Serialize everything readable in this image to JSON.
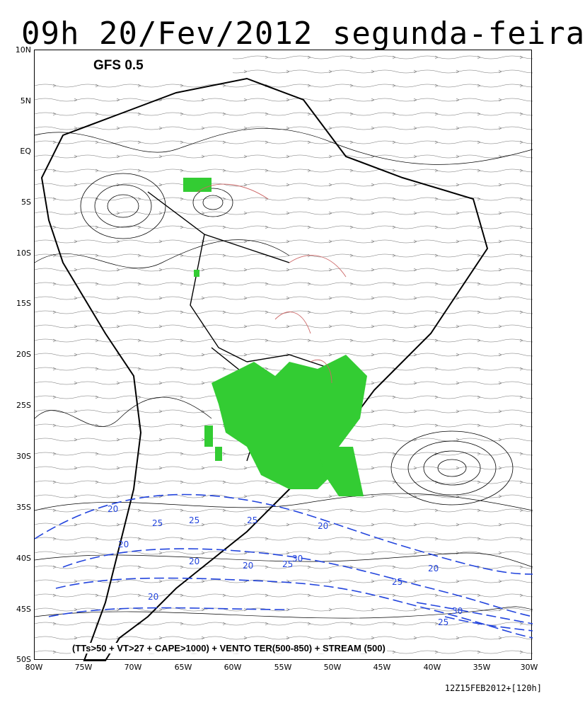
{
  "title": "09h 20/Fev/2012 segunda-feira",
  "model_label": "GFS 0.5",
  "legend": "(TTs>50 + VT>27 + CAPE>1000) + VENTO TER(500-850) + STREAM (500)",
  "footer": "12Z15FEB2012+[120h]",
  "lat_ticks": [
    "10N",
    "5N",
    "EQ",
    "5S",
    "10S",
    "15S",
    "20S",
    "25S",
    "30S",
    "35S",
    "40S",
    "45S",
    "50S"
  ],
  "lon_ticks": [
    "80W",
    "75W",
    "70W",
    "65W",
    "60W",
    "55W",
    "50W",
    "45W",
    "40W",
    "35W",
    "30W"
  ],
  "contour_labels": [
    "20",
    "25",
    "20",
    "25",
    "25",
    "20",
    "20",
    "20",
    "25",
    "30",
    "20",
    "25",
    "30",
    "25",
    "20"
  ],
  "colors": {
    "instability_fill": "#33cc33",
    "wind_contour": "#2244dd",
    "stream": "#000000",
    "secondary_contour": "#cc6666"
  }
}
